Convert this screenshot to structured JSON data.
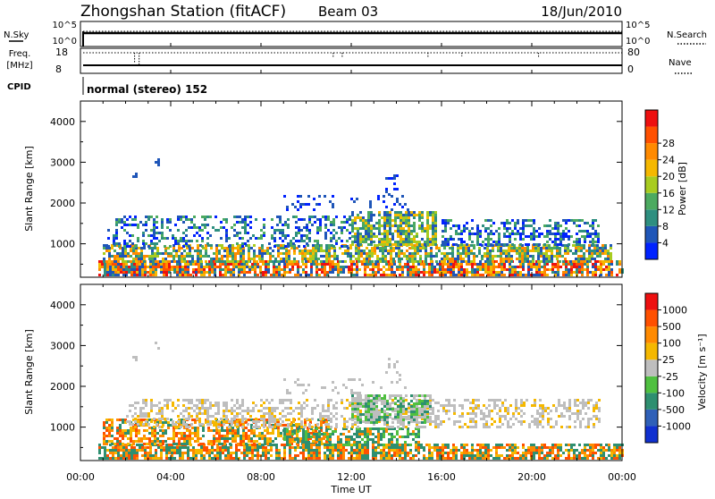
{
  "header": {
    "station": "Zhongshan Station (fitACF)",
    "beam": "Beam 03",
    "date": "18/Jun/2010"
  },
  "top_panels": {
    "nsky_label": "N.Sky",
    "nsky_ticks": [
      "10^5",
      "10^0"
    ],
    "nsearch_label": "N.Search",
    "nsearch_ticks": [
      "10^5",
      "10^0"
    ],
    "freq_label": "Freq.",
    "freq_unit": "[MHz]",
    "freq_ticks": [
      "18",
      "8"
    ],
    "nave_label": "Nave",
    "nave_ticks": [
      "80",
      "0"
    ],
    "cpid_label": "CPID",
    "cpid_value": "normal (stereo) 152"
  },
  "x_axis": {
    "title": "Time UT",
    "ticks": [
      "00:00",
      "04:00",
      "08:00",
      "12:00",
      "16:00",
      "20:00",
      "00:00"
    ]
  },
  "chart_data": [
    {
      "type": "heatmap",
      "panel": "power",
      "ylabel": "Slant Range [km]",
      "yticks": [
        1000,
        2000,
        3000,
        4000
      ],
      "ylim": [
        180,
        4500
      ],
      "xlim_hours": [
        0,
        24
      ],
      "colorbar": {
        "label": "Power [dB]",
        "ticks": [
          "4",
          "8",
          "12",
          "16",
          "20",
          "24",
          "28"
        ],
        "colors": [
          "#0022ff",
          "#1f56b8",
          "#2e8f80",
          "#4caa60",
          "#a8cc20",
          "#f5b800",
          "#ff8a00",
          "#ff5000",
          "#ee1010"
        ]
      },
      "bands": [
        {
          "t0": 0.8,
          "t1": 24.0,
          "r0": 250,
          "r1": 600,
          "density": 0.75,
          "colors": [
            "#ee1010",
            "#ff5000",
            "#ff8a00",
            "#f5b800",
            "#2e8f80",
            "#1f56b8"
          ]
        },
        {
          "t0": 1.0,
          "t1": 23.5,
          "r0": 550,
          "r1": 1000,
          "density": 0.65,
          "colors": [
            "#ff8a00",
            "#f5b800",
            "#a8cc20",
            "#4caa60",
            "#2e8f80",
            "#1f56b8"
          ]
        },
        {
          "t0": 1.2,
          "t1": 12.0,
          "r0": 950,
          "r1": 1700,
          "density": 0.35,
          "colors": [
            "#1f56b8",
            "#2e8f80",
            "#4caa60",
            "#0022ff"
          ]
        },
        {
          "t0": 12.0,
          "t1": 15.8,
          "r0": 1000,
          "r1": 1800,
          "density": 0.7,
          "colors": [
            "#1f56b8",
            "#2e8f80",
            "#4caa60",
            "#a8cc20",
            "#f5b800"
          ]
        },
        {
          "t0": 16.0,
          "t1": 23.0,
          "r0": 950,
          "r1": 1600,
          "density": 0.45,
          "colors": [
            "#1f56b8",
            "#0022ff",
            "#2e8f80",
            "#4caa60"
          ]
        },
        {
          "t0": 9.0,
          "t1": 14.5,
          "r0": 1800,
          "r1": 2200,
          "density": 0.15,
          "colors": [
            "#1f56b8",
            "#0022ff"
          ]
        },
        {
          "t0": 13.5,
          "t1": 14.2,
          "r0": 2200,
          "r1": 2700,
          "density": 0.25,
          "colors": [
            "#1f56b8",
            "#0022ff"
          ]
        },
        {
          "t0": 3.3,
          "t1": 3.5,
          "r0": 2950,
          "r1": 3100,
          "density": 0.5,
          "colors": [
            "#1f56b8"
          ]
        },
        {
          "t0": 2.3,
          "t1": 2.5,
          "r0": 2650,
          "r1": 2750,
          "density": 0.5,
          "colors": [
            "#1f56b8"
          ]
        }
      ]
    },
    {
      "type": "heatmap",
      "panel": "velocity",
      "ylabel": "Slant Range [km]",
      "yticks": [
        1000,
        2000,
        3000,
        4000
      ],
      "ylim": [
        180,
        4500
      ],
      "xlim_hours": [
        0,
        24
      ],
      "colorbar": {
        "label": "Velocity [m s⁻¹]",
        "ticks": [
          "1000",
          "500",
          "100",
          "25",
          "-25",
          "-100",
          "-500",
          "-1000"
        ],
        "colors": [
          "#1030d0",
          "#2f60b8",
          "#2e8f70",
          "#4fc040",
          "#bebebe",
          "#f5b800",
          "#ff8a00",
          "#ff5000",
          "#ee1010"
        ]
      },
      "bands": [
        {
          "t0": 0.8,
          "t1": 24.0,
          "r0": 250,
          "r1": 600,
          "density": 0.72,
          "colors": [
            "#ff8a00",
            "#f5b800",
            "#2e8f70",
            "#2e8f70",
            "#ff5000"
          ]
        },
        {
          "t0": 1.0,
          "t1": 11.0,
          "r0": 550,
          "r1": 1200,
          "density": 0.6,
          "colors": [
            "#ff8a00",
            "#f5b800",
            "#2e8f70",
            "#ff5000"
          ]
        },
        {
          "t0": 9.0,
          "t1": 15.0,
          "r0": 550,
          "r1": 1000,
          "density": 0.6,
          "colors": [
            "#2e8f70",
            "#2e8f70",
            "#4fc040",
            "#ff8a00"
          ]
        },
        {
          "t0": 2.0,
          "t1": 23.0,
          "r0": 1000,
          "r1": 1700,
          "density": 0.4,
          "colors": [
            "#bebebe",
            "#bebebe",
            "#bebebe",
            "#f5b800"
          ]
        },
        {
          "t0": 12.0,
          "t1": 15.5,
          "r0": 1100,
          "r1": 1800,
          "density": 0.7,
          "colors": [
            "#bebebe",
            "#bebebe",
            "#4fc040",
            "#2e8f70"
          ]
        },
        {
          "t0": 9.0,
          "t1": 14.5,
          "r0": 1800,
          "r1": 2200,
          "density": 0.15,
          "colors": [
            "#bebebe"
          ]
        },
        {
          "t0": 13.5,
          "t1": 14.2,
          "r0": 2200,
          "r1": 2700,
          "density": 0.25,
          "colors": [
            "#bebebe"
          ]
        },
        {
          "t0": 3.3,
          "t1": 3.5,
          "r0": 2950,
          "r1": 3100,
          "density": 0.5,
          "colors": [
            "#bebebe"
          ]
        },
        {
          "t0": 2.3,
          "t1": 2.5,
          "r0": 2650,
          "r1": 2750,
          "density": 0.5,
          "colors": [
            "#bebebe"
          ]
        }
      ]
    }
  ]
}
